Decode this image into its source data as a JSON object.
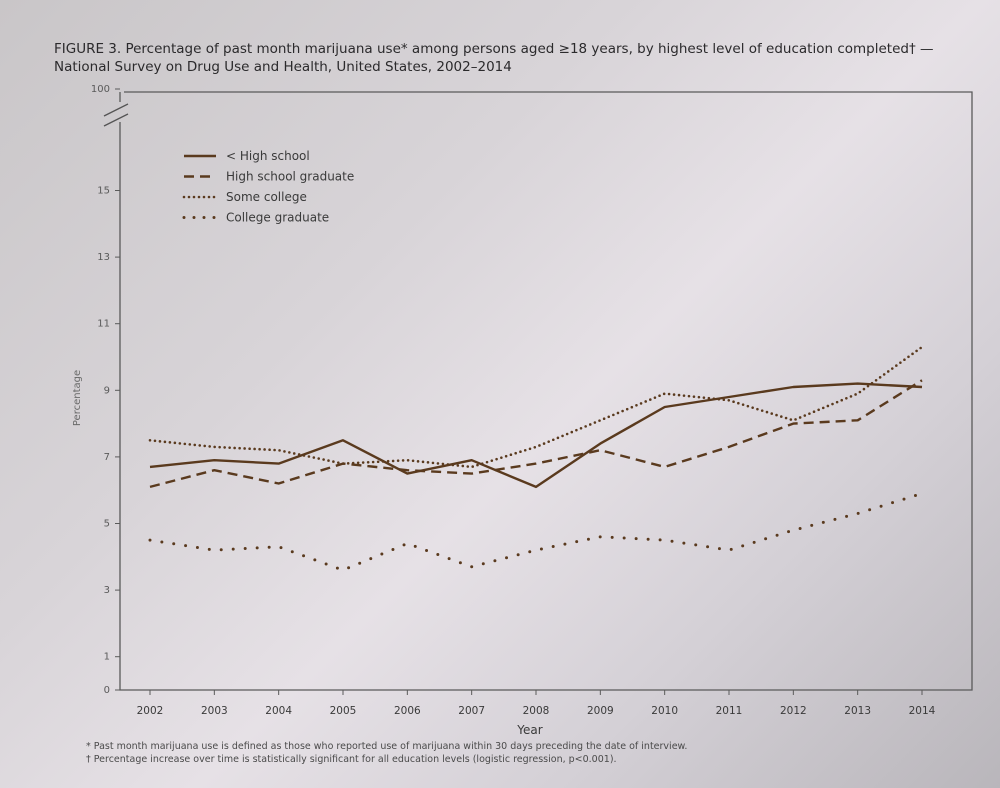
{
  "figure": {
    "title": "FIGURE 3. Percentage of past month marijuana use* among persons aged ≥18 years, by highest level of education completed† — National Survey on Drug Use and Health, United States, 2002–2014",
    "footnotes": [
      "* Past month marijuana use is defined as those who reported use of marijuana within 30 days preceding the date of interview.",
      "† Percentage increase over time is statistically significant for all education levels (logistic regression, p<0.001)."
    ]
  },
  "colors": {
    "line": "#5a3a1e",
    "frame": "#5a5a5a"
  },
  "chart_data": {
    "type": "line",
    "title": "",
    "xlabel": "Year",
    "ylabel": "Percentage",
    "x": [
      "2002",
      "2003",
      "2004",
      "2005",
      "2006",
      "2007",
      "2008",
      "2009",
      "2010",
      "2011",
      "2012",
      "2013",
      "2014"
    ],
    "y_ticks": [
      "0",
      "1",
      "3",
      "5",
      "7",
      "9",
      "11",
      "13",
      "15",
      "100"
    ],
    "ylim": [
      0,
      16
    ],
    "y_break": "axis break between 15 and 100",
    "grid": false,
    "legend_position": "top-left",
    "series": [
      {
        "name": "< High school",
        "style": "solid",
        "values": [
          6.7,
          6.9,
          6.8,
          7.5,
          6.5,
          6.9,
          6.1,
          7.4,
          8.5,
          8.8,
          9.1,
          9.2,
          9.1
        ]
      },
      {
        "name": "High school graduate",
        "style": "dashed",
        "values": [
          6.1,
          6.6,
          6.2,
          6.8,
          6.6,
          6.5,
          6.8,
          7.2,
          6.7,
          7.3,
          8.0,
          8.1,
          9.3
        ]
      },
      {
        "name": "Some college",
        "style": "dotted",
        "values": [
          7.5,
          7.3,
          7.2,
          6.8,
          6.9,
          6.7,
          7.3,
          8.1,
          8.9,
          8.7,
          8.1,
          8.9,
          10.3
        ]
      },
      {
        "name": "College graduate",
        "style": "sparse-dotted",
        "values": [
          4.5,
          4.2,
          4.3,
          3.6,
          4.4,
          3.7,
          4.2,
          4.6,
          4.5,
          4.2,
          4.8,
          5.3,
          5.9
        ]
      }
    ]
  }
}
